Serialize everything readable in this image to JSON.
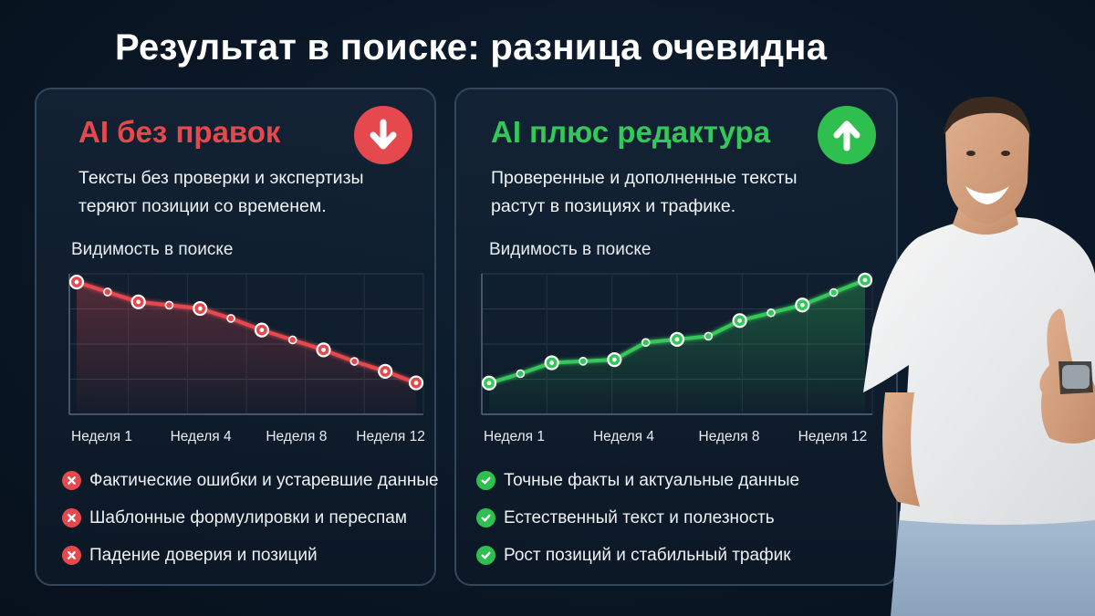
{
  "title": "Результат в поиске: разница очевидна",
  "colors": {
    "negative": "#e5484d",
    "positive": "#34c759",
    "background": "#0a1726"
  },
  "left_card": {
    "heading": "AI без правок",
    "icon": "arrow-down-icon",
    "description": "Тексты без проверки и экспертизы теряют позиции со временем.",
    "chart_label": "Видимость в поиске",
    "items": [
      {
        "icon": "cross-icon",
        "text": "Фактические ошибки и устаревшие данные"
      },
      {
        "icon": "cross-icon",
        "text": "Шаблонные формулировки и переспам"
      },
      {
        "icon": "cross-icon",
        "text": "Падение доверия и позиций"
      }
    ]
  },
  "right_card": {
    "heading": "AI плюс редактура",
    "icon": "arrow-up-icon",
    "description": "Проверенные и дополненные тексты растут в позициях и трафике.",
    "chart_label": "Видимость в поиске",
    "items": [
      {
        "icon": "check-icon",
        "text": "Точные факты и актуальные данные"
      },
      {
        "icon": "check-icon",
        "text": "Естественный текст и полезность"
      },
      {
        "icon": "check-icon",
        "text": "Рост позиций и стабильный трафик"
      }
    ]
  },
  "chart_data": [
    {
      "type": "area",
      "title": "Видимость в поиске",
      "categories": [
        "Неделя 1",
        "Неделя 4",
        "Неделя 8",
        "Неделя 12"
      ],
      "x": [
        1,
        2,
        3,
        4,
        5,
        6,
        7,
        8,
        9,
        10,
        11,
        12
      ],
      "values": [
        100,
        94,
        88,
        86,
        84,
        78,
        71,
        65,
        59,
        52,
        46,
        39
      ],
      "ylim": [
        20,
        105
      ],
      "grid": true,
      "color": "#e5484d"
    },
    {
      "type": "area",
      "title": "Видимость в поиске",
      "categories": [
        "Неделя 1",
        "Неделя 4",
        "Неделя 8",
        "Неделя 12"
      ],
      "x": [
        1,
        2,
        3,
        4,
        5,
        6,
        7,
        8,
        9,
        10,
        11,
        12,
        13
      ],
      "values": [
        30,
        36,
        43,
        44,
        45,
        56,
        58,
        60,
        70,
        75,
        80,
        88,
        96
      ],
      "ylim": [
        10,
        100
      ],
      "grid": true,
      "color": "#34c759"
    }
  ]
}
